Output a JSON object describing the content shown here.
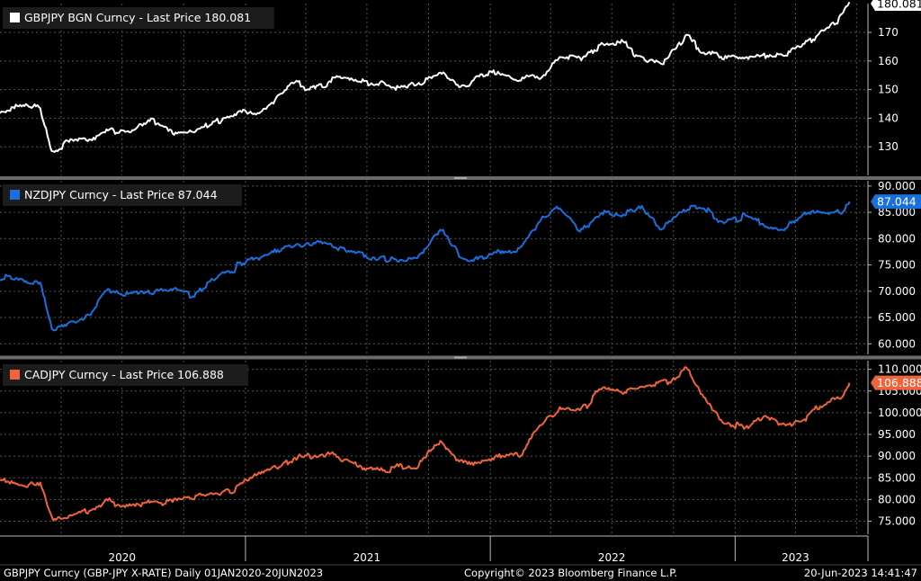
{
  "footer": {
    "left": "GBPJPY Curncy (GBP-JPY X-RATE)  Daily 01JAN2020-20JUN2023",
    "center": "Copyright© 2023 Bloomberg Finance L.P.",
    "right": "20-Jun-2023 14:41:47"
  },
  "chart_data": [
    {
      "type": "line",
      "legend": "GBPJPY BGN Curncy - Last Price 180.081",
      "series": [
        {
          "name": "GBPJPY BGN Curncy",
          "color": "#ffffff",
          "x": [
            "2020-01-01",
            "2020-02-01",
            "2020-03-01",
            "2020-03-19",
            "2020-04-15",
            "2020-05-15",
            "2020-06-08",
            "2020-07-15",
            "2020-08-15",
            "2020-09-15",
            "2020-10-15",
            "2020-11-15",
            "2020-12-15",
            "2021-01-15",
            "2021-02-15",
            "2021-03-15",
            "2021-04-15",
            "2021-05-15",
            "2021-06-15",
            "2021-07-15",
            "2021-08-15",
            "2021-09-15",
            "2021-10-20",
            "2021-11-15",
            "2021-12-15",
            "2022-01-15",
            "2022-02-15",
            "2022-03-15",
            "2022-04-15",
            "2022-05-15",
            "2022-06-15",
            "2022-07-15",
            "2022-08-15",
            "2022-09-15",
            "2022-10-20",
            "2022-11-15",
            "2022-12-15",
            "2023-01-15",
            "2023-02-15",
            "2023-03-15",
            "2023-04-15",
            "2023-05-15",
            "2023-06-10",
            "2023-06-20"
          ],
          "y": [
            143,
            144,
            143,
            127,
            133,
            132,
            136,
            136,
            140,
            136,
            136,
            139,
            141,
            142,
            147,
            152,
            151,
            154,
            153,
            152,
            151,
            152,
            157,
            152,
            154,
            156,
            153,
            154,
            162,
            162,
            166,
            166,
            162,
            158,
            169,
            164,
            161,
            160,
            162,
            163,
            166,
            171,
            176,
            180.081
          ]
        }
      ],
      "y_ticks": [
        130,
        140,
        150,
        160,
        170
      ],
      "ylim": [
        120,
        180.081
      ],
      "last_value": "180.081",
      "last_color": "#ffffff",
      "last_text_color": "#000000"
    },
    {
      "type": "line",
      "legend": "NZDJPY Curncy - Last Price 87.044",
      "series": [
        {
          "name": "NZDJPY Curncy",
          "color": "#1a6fdc",
          "x": [
            "2020-01-01",
            "2020-02-01",
            "2020-03-01",
            "2020-03-19",
            "2020-04-15",
            "2020-05-15",
            "2020-06-08",
            "2020-07-15",
            "2020-08-15",
            "2020-09-15",
            "2020-10-15",
            "2020-11-15",
            "2020-12-15",
            "2021-01-15",
            "2021-02-15",
            "2021-03-15",
            "2021-04-15",
            "2021-05-15",
            "2021-06-15",
            "2021-07-15",
            "2021-08-15",
            "2021-09-15",
            "2021-10-20",
            "2021-11-15",
            "2021-12-15",
            "2022-01-15",
            "2022-02-15",
            "2022-03-15",
            "2022-04-15",
            "2022-05-15",
            "2022-06-15",
            "2022-07-15",
            "2022-08-15",
            "2022-09-15",
            "2022-10-20",
            "2022-11-15",
            "2022-12-15",
            "2023-01-15",
            "2023-02-15",
            "2023-03-15",
            "2023-04-15",
            "2023-05-15",
            "2023-06-10",
            "2023-06-20"
          ],
          "y": [
            72.5,
            72.5,
            71,
            62.5,
            64,
            65.5,
            70,
            69.5,
            70,
            70,
            69.5,
            73,
            74.5,
            76,
            78,
            78.5,
            79.5,
            78.5,
            77,
            76.5,
            75.5,
            76.5,
            82,
            77,
            76,
            78,
            78,
            83,
            86,
            81,
            85,
            84.5,
            86,
            82,
            86,
            86.5,
            83,
            84,
            82.5,
            82,
            85,
            84.5,
            85.5,
            87.044
          ]
        }
      ],
      "y_ticks": [
        60,
        65,
        70,
        75,
        80,
        85,
        90
      ],
      "y_tick_labels": [
        "60.000",
        "65.000",
        "70.000",
        "75.000",
        "80.000",
        "85.000",
        "90.000"
      ],
      "ylim": [
        58,
        91
      ],
      "last_value": "87.044",
      "last_color": "#1a6fdc",
      "last_text_color": "#ffffff"
    },
    {
      "type": "line",
      "legend": "CADJPY Curncy - Last Price 106.888",
      "series": [
        {
          "name": "CADJPY Curncy",
          "color": "#f0643c",
          "x": [
            "2020-01-01",
            "2020-02-01",
            "2020-03-01",
            "2020-03-19",
            "2020-04-15",
            "2020-05-15",
            "2020-06-08",
            "2020-07-15",
            "2020-08-15",
            "2020-09-15",
            "2020-10-15",
            "2020-11-15",
            "2020-12-15",
            "2021-01-15",
            "2021-02-15",
            "2021-03-15",
            "2021-04-15",
            "2021-05-15",
            "2021-06-15",
            "2021-07-15",
            "2021-08-15",
            "2021-09-15",
            "2021-10-20",
            "2021-11-15",
            "2021-12-15",
            "2022-01-15",
            "2022-02-15",
            "2022-03-15",
            "2022-04-15",
            "2022-05-15",
            "2022-06-15",
            "2022-07-15",
            "2022-08-15",
            "2022-09-15",
            "2022-10-20",
            "2022-11-15",
            "2022-12-15",
            "2023-01-15",
            "2023-02-15",
            "2023-03-15",
            "2023-04-15",
            "2023-05-15",
            "2023-06-10",
            "2023-06-20"
          ],
          "y": [
            84,
            84,
            84,
            76,
            76,
            77,
            80,
            79,
            79.5,
            80,
            80,
            81.5,
            82,
            85,
            87,
            89,
            90,
            90,
            88,
            87,
            87,
            88,
            93,
            89,
            88,
            90,
            90,
            97,
            101,
            100,
            106,
            105,
            106,
            107,
            110,
            103,
            98,
            96,
            100,
            97,
            99,
            102,
            104,
            106.888
          ]
        }
      ],
      "y_ticks": [
        75,
        80,
        85,
        90,
        95,
        100,
        105,
        110
      ],
      "y_tick_labels": [
        "75.000",
        "80.000",
        "85.000",
        "90.000",
        "95.000",
        "100.000",
        "105.000",
        "110.000"
      ],
      "ylim": [
        72,
        112
      ],
      "last_value": "106.888",
      "last_color": "#f0643c",
      "last_text_color": "#ffffff"
    }
  ],
  "x_axis": {
    "labels": [
      "2020",
      "2021",
      "2022",
      "2023"
    ]
  }
}
